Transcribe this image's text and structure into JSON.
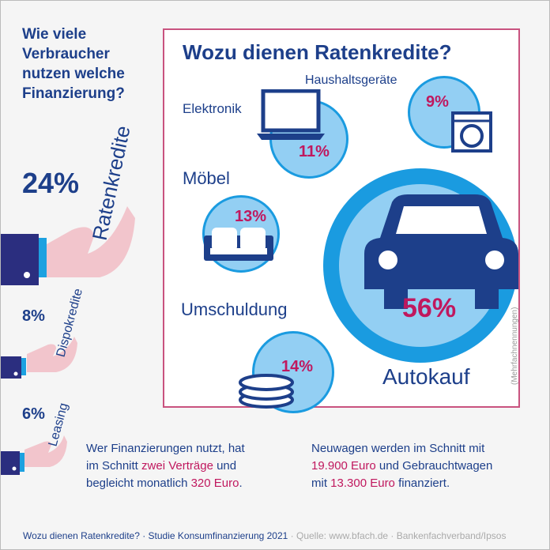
{
  "left": {
    "title_lines": [
      "Wie viele",
      "Verbraucher",
      "nutzen welche",
      "Finanzierung?"
    ],
    "items": [
      {
        "label": "Ratenkredite",
        "value": "24%"
      },
      {
        "label": "Dispokredite",
        "value": "8%"
      },
      {
        "label": "Leasing",
        "value": "6%"
      }
    ]
  },
  "box": {
    "title": "Wozu dienen Ratenkredite?",
    "note": "(Mehrfachnennungen)",
    "items": [
      {
        "label": "Elektronik",
        "value": "11%",
        "icon": "laptop-icon"
      },
      {
        "label": "Haushaltsgeräte",
        "value": "9%",
        "icon": "washing-machine-icon"
      },
      {
        "label": "Möbel",
        "value": "13%",
        "icon": "sofa-icon"
      },
      {
        "label": "Umschuldung",
        "value": "14%",
        "icon": "coins-icon"
      },
      {
        "label": "Autokauf",
        "value": "56%",
        "icon": "car-icon"
      }
    ]
  },
  "notes": {
    "left": {
      "l1": "Wer Finanzierungen nutzt, hat",
      "l2a": "im Schnitt ",
      "l2b": "zwei Verträge",
      "l2c": " und",
      "l3a": "begleicht monatlich ",
      "l3b": "320 Euro",
      "l3c": "."
    },
    "right": {
      "l1": "Neuwagen werden im Schnitt mit",
      "l2a": "19.900 Euro",
      "l2b": " und Gebrauchtwagen",
      "l3a": "mit ",
      "l3b": "13.300 Euro",
      "l3c": " finanziert."
    }
  },
  "footer": {
    "a": "Wozu dienen Ratenkredite? · Studie Konsumfinanzierung 2021",
    "b": " · Quelle: www.bfach.de · Bankenfachverband/Ipsos"
  },
  "colors": {
    "primary": "#1d3f8a",
    "accent": "#c0185e",
    "bubble": "#93cff3",
    "bubble_border": "#1a9be0",
    "sleeve": "#2b2e7f",
    "hand": "#f2c5cc"
  },
  "chart_data": [
    {
      "type": "bubble",
      "title": "Wie viele Verbraucher nutzen welche Finanzierung?",
      "categories": [
        "Ratenkredite",
        "Dispokredite",
        "Leasing"
      ],
      "values": [
        24,
        8,
        6
      ],
      "unit": "%"
    },
    {
      "type": "bubble",
      "title": "Wozu dienen Ratenkredite?",
      "categories": [
        "Elektronik",
        "Haushaltsgeräte",
        "Möbel",
        "Umschuldung",
        "Autokauf"
      ],
      "values": [
        11,
        9,
        13,
        14,
        56
      ],
      "unit": "%",
      "note": "(Mehrfachnennungen)"
    }
  ]
}
